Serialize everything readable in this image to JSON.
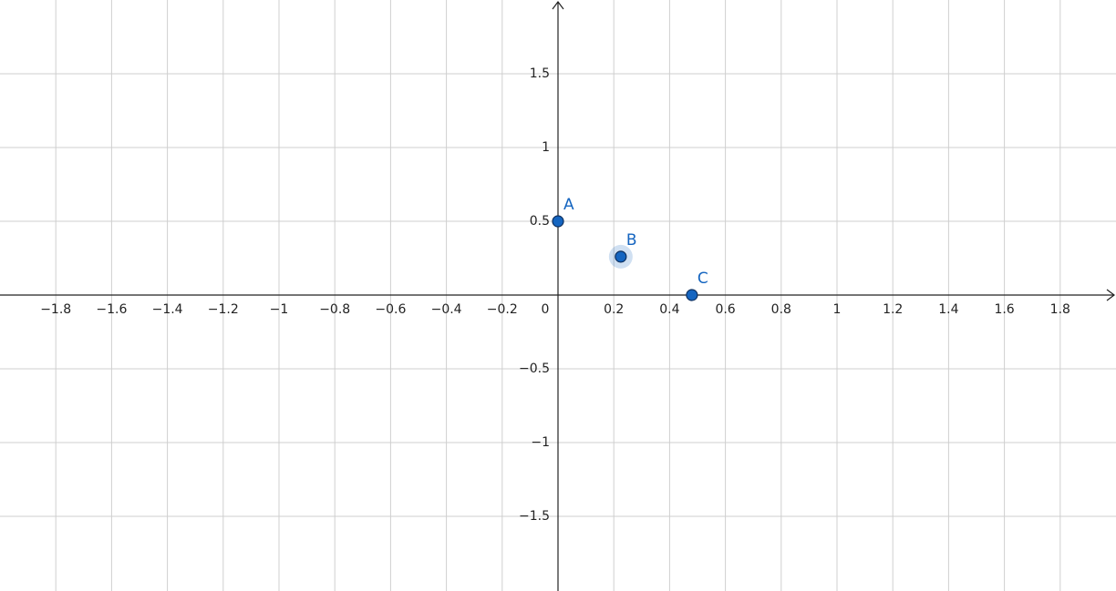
{
  "chart_data": {
    "type": "scatter",
    "points": [
      {
        "label": "A",
        "x": 0,
        "y": 0.5
      },
      {
        "label": "B",
        "x": 0.225,
        "y": 0.26
      },
      {
        "label": "C",
        "x": 0.48,
        "y": 0
      }
    ],
    "color": "#1565c0",
    "highlight": 1,
    "xlim": [
      -2,
      2
    ],
    "ylim": [
      -2,
      2
    ],
    "xticks": [
      {
        "value": -1.8,
        "label": "−1.8"
      },
      {
        "value": -1.6,
        "label": "−1.6"
      },
      {
        "value": -1.4,
        "label": "−1.4"
      },
      {
        "value": -1.2,
        "label": "−1.2"
      },
      {
        "value": -1,
        "label": "−1"
      },
      {
        "value": -0.8,
        "label": "−0.8"
      },
      {
        "value": -0.6,
        "label": "−0.6"
      },
      {
        "value": -0.4,
        "label": "−0.4"
      },
      {
        "value": -0.2,
        "label": "−0.2"
      },
      0,
      0.2,
      0.4,
      0.6,
      0.8,
      1,
      1.2,
      1.4,
      1.6,
      1.8
    ],
    "yticks": [
      {
        "value": -1.5,
        "label": "−1.5"
      },
      {
        "value": -1,
        "label": "−1"
      },
      {
        "value": -0.5,
        "label": "−0.5"
      },
      0.5,
      1,
      1.5
    ],
    "grid": true
  }
}
